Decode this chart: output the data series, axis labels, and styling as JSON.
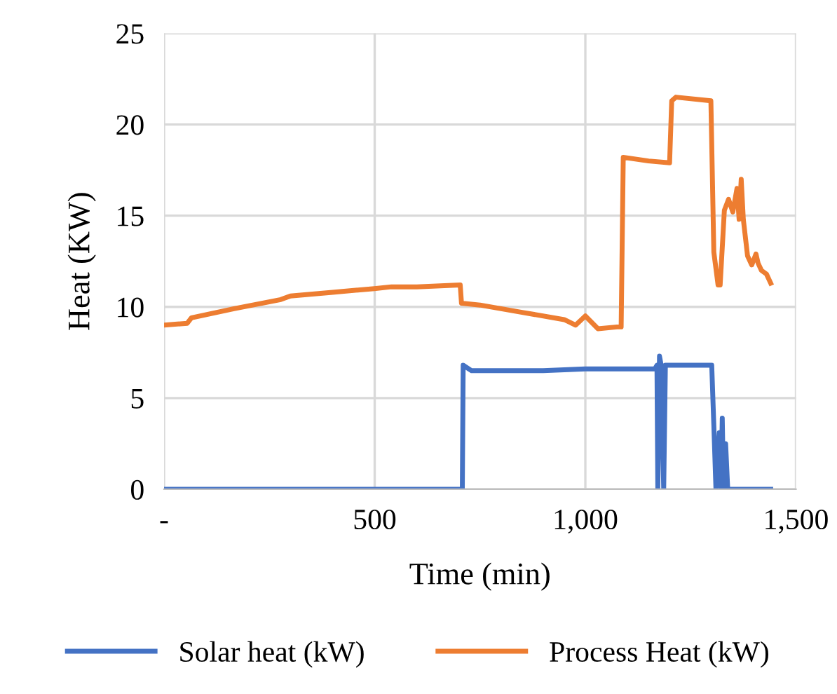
{
  "chart_data": {
    "type": "line",
    "xlabel": "Time (min)",
    "ylabel": "Heat (KW)",
    "xlim": [
      0,
      1500
    ],
    "xticks": [
      {
        "value": 0,
        "label": "-"
      },
      500,
      {
        "value": 1000,
        "label": "1,000"
      },
      {
        "value": 1500,
        "label": "1,500"
      }
    ],
    "ylim": [
      0,
      25
    ],
    "yticks": [
      0,
      5,
      10,
      15,
      20,
      25
    ],
    "grid": true,
    "legend": "bottom",
    "marker": "none",
    "line_style": "solid",
    "series": [
      {
        "name": "Solar heat (kW)",
        "color": "#4472c4",
        "x": [
          0,
          708,
          710,
          730,
          800,
          900,
          1000,
          1100,
          1165,
          1170,
          1172,
          1176,
          1180,
          1186,
          1190,
          1195,
          1200,
          1210,
          1250,
          1300,
          1305,
          1310,
          1318,
          1322,
          1325,
          1328,
          1333,
          1338,
          1400,
          1440
        ],
        "values": [
          0,
          0,
          6.8,
          6.5,
          6.5,
          6.5,
          6.6,
          6.6,
          6.6,
          6.8,
          0,
          7.3,
          6.8,
          0,
          6.8,
          6.8,
          6.8,
          6.8,
          6.8,
          6.8,
          3.5,
          0,
          3.1,
          0,
          3.9,
          0,
          2.5,
          0,
          0,
          0
        ]
      },
      {
        "name": "Process Heat (kW)",
        "color": "#ed7d31",
        "x": [
          0,
          55,
          65,
          166,
          277,
          300,
          400,
          499,
          540,
          600,
          703,
          706,
          750,
          850,
          950,
          977,
          1000,
          1030,
          1075,
          1085,
          1090,
          1150,
          1200,
          1205,
          1215,
          1298,
          1305,
          1315,
          1320,
          1330,
          1340,
          1350,
          1360,
          1365,
          1370,
          1375,
          1385,
          1395,
          1405,
          1410,
          1418,
          1430,
          1440
        ],
        "values": [
          9.0,
          9.1,
          9.4,
          9.9,
          10.4,
          10.6,
          10.8,
          11.0,
          11.1,
          11.1,
          11.2,
          10.2,
          10.1,
          9.7,
          9.3,
          9.0,
          9.5,
          8.8,
          8.9,
          8.9,
          18.2,
          18.0,
          17.9,
          21.3,
          21.5,
          21.3,
          13.0,
          11.2,
          11.2,
          15.3,
          15.9,
          15.2,
          16.5,
          14.8,
          17.0,
          14.8,
          12.8,
          12.3,
          12.9,
          12.4,
          12.0,
          11.8,
          11.3
        ]
      }
    ]
  }
}
